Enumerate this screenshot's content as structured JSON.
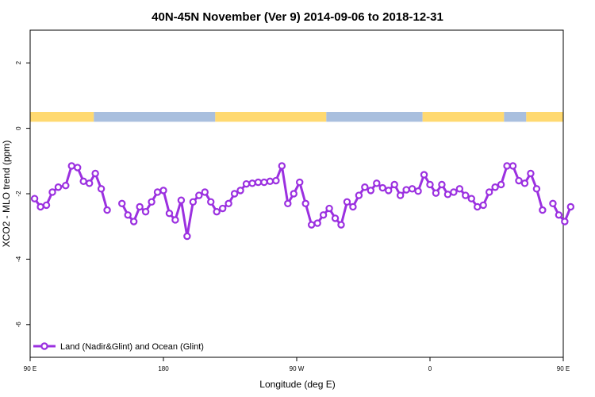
{
  "chart_data": {
    "type": "line",
    "title": "40N-45N November (Ver 9)   2014-09-06 to 2018-12-31",
    "xlabel": "Longitude (deg E)",
    "ylabel": "XCO2 - MLO trend (ppm)",
    "xlim": [
      90,
      450
    ],
    "ylim": [
      -7,
      3
    ],
    "x_ticks": [
      {
        "value": 90,
        "label": "90 E"
      },
      {
        "value": 180,
        "label": "180"
      },
      {
        "value": 270,
        "label": "90 W"
      },
      {
        "value": 360,
        "label": "0"
      },
      {
        "value": 450,
        "label": "90 E"
      },
      {
        "value": 540,
        "label": "180"
      }
    ],
    "y_ticks": [
      {
        "value": 2,
        "label": "2"
      },
      {
        "value": 0,
        "label": "0"
      },
      {
        "value": -2,
        "label": "-2"
      },
      {
        "value": -4,
        "label": "-4"
      },
      {
        "value": -6,
        "label": "-6"
      }
    ],
    "legend": {
      "position": "bottom-left"
    },
    "series": [
      {
        "name": "Land (Nadir&Glint) and Ocean (Glint)",
        "color": "#9b30e0",
        "points": [
          [
            93,
            -2.15
          ],
          [
            97,
            -2.4
          ],
          [
            101,
            -2.35
          ],
          [
            105,
            -1.95
          ],
          [
            109,
            -1.8
          ],
          [
            114,
            -1.75
          ],
          [
            118,
            -1.15
          ],
          [
            122,
            -1.2
          ],
          [
            126,
            -1.62
          ],
          [
            130,
            -1.68
          ],
          [
            134,
            -1.38
          ],
          [
            138,
            -1.85
          ],
          [
            142,
            -2.5
          ],
          null,
          [
            152,
            -2.3
          ],
          [
            156,
            -2.65
          ],
          [
            160,
            -2.85
          ],
          [
            164,
            -2.4
          ],
          [
            168,
            -2.55
          ],
          [
            172,
            -2.25
          ],
          [
            176,
            -1.95
          ],
          [
            180,
            -1.9
          ],
          [
            184,
            -2.6
          ],
          [
            188,
            -2.8
          ],
          [
            192,
            -2.2
          ],
          [
            196,
            -3.3
          ],
          [
            200,
            -2.25
          ],
          [
            204,
            -2.05
          ],
          [
            208,
            -1.95
          ],
          [
            212,
            -2.25
          ],
          [
            216,
            -2.55
          ],
          [
            220,
            -2.45
          ],
          [
            224,
            -2.3
          ],
          [
            228,
            -2.0
          ],
          [
            232,
            -1.9
          ],
          [
            236,
            -1.7
          ],
          [
            240,
            -1.68
          ],
          [
            244,
            -1.65
          ],
          [
            248,
            -1.65
          ],
          [
            252,
            -1.62
          ],
          [
            256,
            -1.6
          ],
          [
            260,
            -1.15
          ],
          [
            264,
            -2.3
          ],
          [
            268,
            -2.0
          ],
          [
            272,
            -1.65
          ],
          [
            276,
            -2.3
          ],
          [
            280,
            -2.95
          ],
          [
            284,
            -2.9
          ],
          [
            288,
            -2.65
          ],
          [
            292,
            -2.45
          ],
          [
            296,
            -2.75
          ],
          [
            300,
            -2.95
          ],
          [
            304,
            -2.25
          ],
          [
            308,
            -2.4
          ],
          [
            312,
            -2.05
          ],
          [
            316,
            -1.8
          ],
          [
            320,
            -1.9
          ],
          [
            324,
            -1.68
          ],
          [
            328,
            -1.82
          ],
          [
            332,
            -1.9
          ],
          [
            336,
            -1.72
          ],
          [
            340,
            -2.05
          ],
          [
            344,
            -1.88
          ],
          [
            348,
            -1.85
          ],
          [
            352,
            -1.92
          ],
          [
            356,
            -1.42
          ],
          [
            360,
            -1.72
          ],
          [
            364,
            -1.98
          ],
          [
            368,
            -1.72
          ],
          [
            372,
            -2.02
          ],
          [
            376,
            -1.95
          ],
          [
            380,
            -1.85
          ],
          [
            384,
            -2.05
          ],
          [
            388,
            -2.15
          ],
          [
            392,
            -2.4
          ],
          [
            396,
            -2.35
          ],
          [
            400,
            -1.95
          ],
          [
            404,
            -1.8
          ],
          [
            408,
            -1.72
          ],
          [
            412,
            -1.15
          ],
          [
            416,
            -1.15
          ],
          [
            420,
            -1.6
          ],
          [
            424,
            -1.68
          ],
          [
            428,
            -1.38
          ],
          [
            432,
            -1.85
          ],
          [
            436,
            -2.5
          ],
          null,
          [
            443,
            -2.3
          ],
          [
            447,
            -2.65
          ],
          [
            451,
            -2.85
          ],
          [
            455,
            -2.4
          ]
        ]
      }
    ],
    "surface_band": {
      "y_range": [
        0.2,
        0.5
      ],
      "colors": {
        "land": "#ffd970",
        "ocean": "#a9bfde"
      },
      "segments": [
        {
          "from": 90,
          "to": 133,
          "type": "land"
        },
        {
          "from": 133,
          "to": 215,
          "type": "ocean"
        },
        {
          "from": 215,
          "to": 290,
          "type": "land"
        },
        {
          "from": 290,
          "to": 355,
          "type": "ocean"
        },
        {
          "from": 355,
          "to": 410,
          "type": "land"
        },
        {
          "from": 410,
          "to": 425,
          "type": "ocean"
        },
        {
          "from": 425,
          "to": 450,
          "type": "land"
        },
        {
          "from": 450,
          "to": 540,
          "type": "ocean"
        }
      ]
    }
  }
}
